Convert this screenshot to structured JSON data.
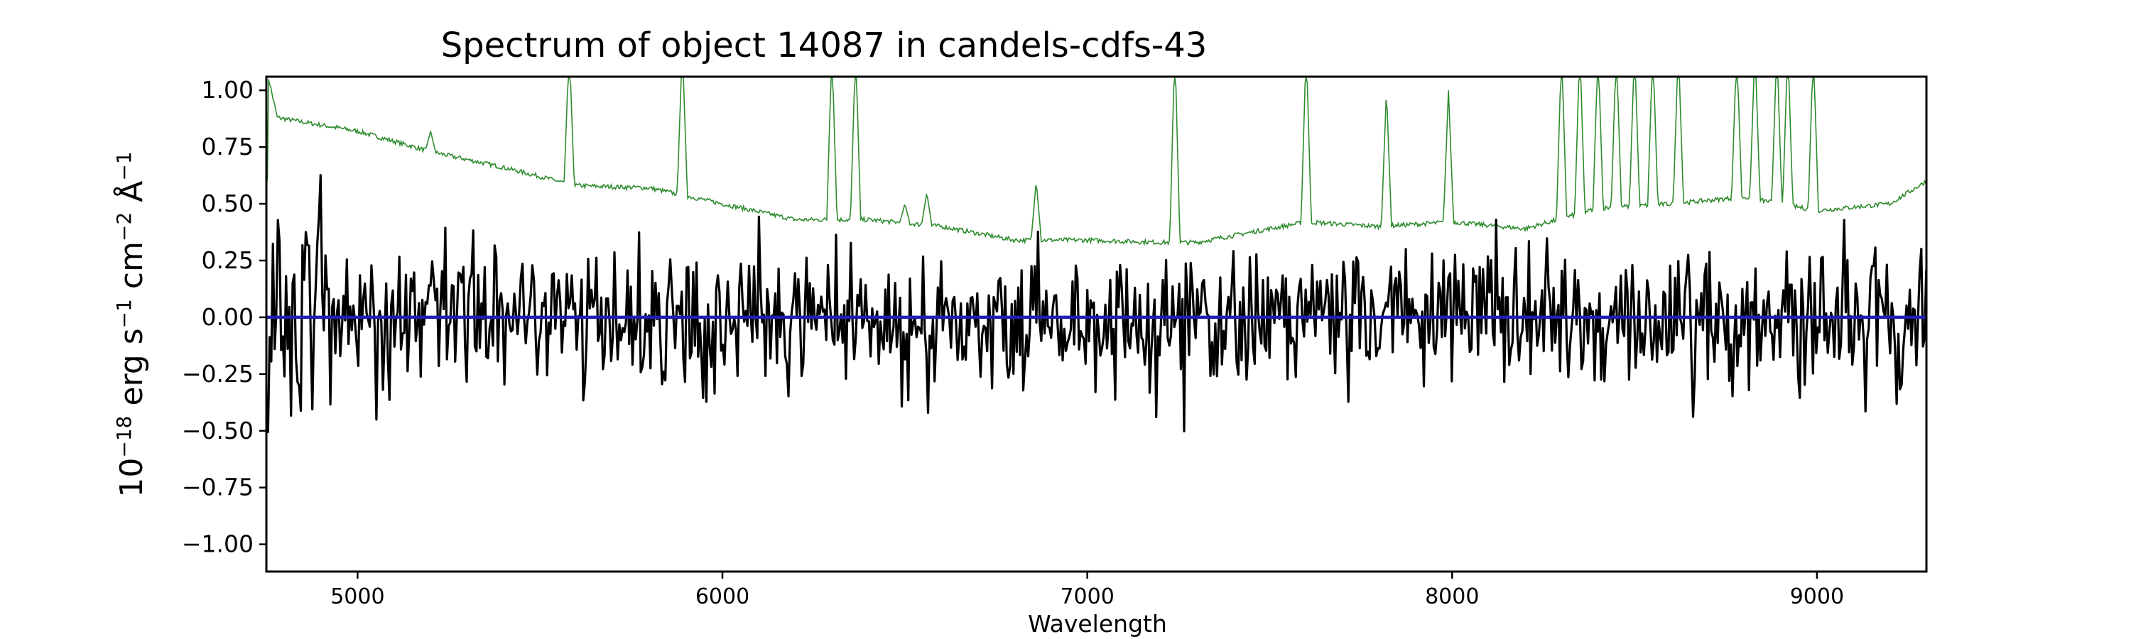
{
  "chart_data": {
    "type": "line",
    "title": "Spectrum of object 14087 in candels-cdfs-43",
    "xlabel": "Wavelength",
    "ylabel": {
      "base": "10",
      "exp": "−18",
      "text": " erg s",
      "exp_s": "−1",
      "text_cm": " cm",
      "exp_cm": "−2",
      "text_a": " Å",
      "exp_a": "−1"
    },
    "xlim": [
      4750,
      9300
    ],
    "ylim": [
      -1.12,
      1.06
    ],
    "x_ticks": [
      5000,
      6000,
      7000,
      8000,
      9000
    ],
    "x_tick_labels": [
      "5000",
      "6000",
      "7000",
      "8000",
      "9000"
    ],
    "y_ticks": [
      1.0,
      0.75,
      0.5,
      0.25,
      0.0,
      -0.25,
      -0.5,
      -0.75,
      -1.0
    ],
    "y_tick_labels": [
      "1.00",
      "0.75",
      "0.50",
      "0.25",
      "0.00",
      "−0.25",
      "−0.50",
      "−0.75",
      "−1.00"
    ],
    "grid": false,
    "series": [
      {
        "role": "error",
        "color": "#2e8b2e",
        "baseline_points": [
          [
            4755,
            1.06
          ],
          [
            4780,
            0.88
          ],
          [
            4850,
            0.86
          ],
          [
            5000,
            0.82
          ],
          [
            5200,
            0.73
          ],
          [
            5400,
            0.66
          ],
          [
            5600,
            0.58
          ],
          [
            5800,
            0.57
          ],
          [
            6000,
            0.5
          ],
          [
            6200,
            0.43
          ],
          [
            6400,
            0.43
          ],
          [
            6600,
            0.4
          ],
          [
            6800,
            0.34
          ],
          [
            7000,
            0.34
          ],
          [
            7200,
            0.33
          ],
          [
            7300,
            0.33
          ],
          [
            7600,
            0.42
          ],
          [
            7800,
            0.4
          ],
          [
            8000,
            0.42
          ],
          [
            8200,
            0.39
          ],
          [
            8400,
            0.48
          ],
          [
            8600,
            0.5
          ],
          [
            8800,
            0.53
          ],
          [
            9000,
            0.47
          ],
          [
            9200,
            0.5
          ],
          [
            9300,
            0.6
          ]
        ],
        "spikes": [
          [
            5200,
            0.82
          ],
          [
            5580,
            1.2
          ],
          [
            5890,
            1.2
          ],
          [
            6300,
            1.2
          ],
          [
            6365,
            1.2
          ],
          [
            6500,
            0.5
          ],
          [
            6560,
            0.55
          ],
          [
            6860,
            0.6
          ],
          [
            7240,
            1.2
          ],
          [
            7600,
            1.2
          ],
          [
            7820,
            1.0
          ],
          [
            7990,
            1.0
          ],
          [
            8300,
            1.2
          ],
          [
            8350,
            1.2
          ],
          [
            8400,
            1.2
          ],
          [
            8450,
            1.2
          ],
          [
            8500,
            1.2
          ],
          [
            8550,
            1.2
          ],
          [
            8620,
            1.2
          ],
          [
            8780,
            1.2
          ],
          [
            8830,
            1.2
          ],
          [
            8890,
            1.2
          ],
          [
            8920,
            1.2
          ],
          [
            8990,
            1.2
          ]
        ]
      },
      {
        "role": "flux",
        "color": "#000000",
        "amplitude": 0.22,
        "seed": 14087
      },
      {
        "role": "model",
        "color": "#1f1fb4",
        "values": [
          [
            4750,
            0.0
          ],
          [
            9300,
            0.0
          ]
        ]
      }
    ]
  }
}
